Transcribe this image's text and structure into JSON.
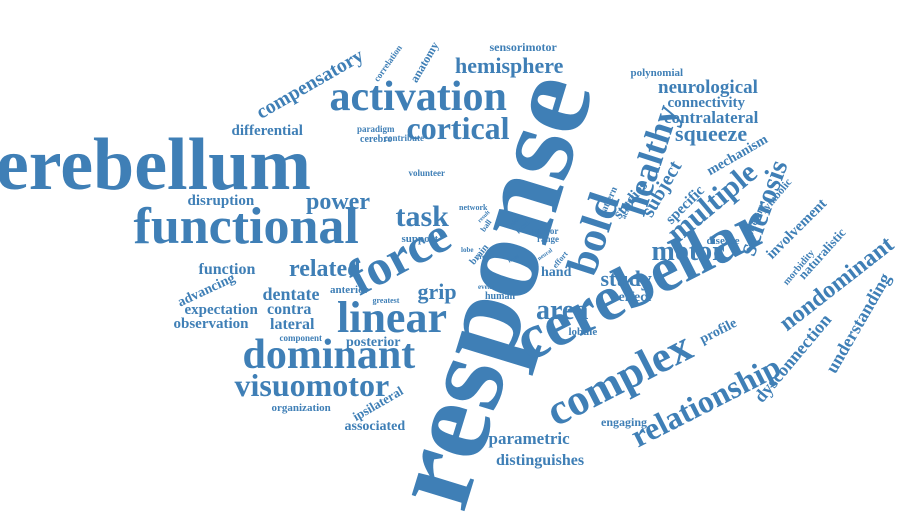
{
  "color": "#3f7fb6",
  "words": {
    "response": "response",
    "cerebellum": "cerebellum",
    "cerebellar": "cerebellar",
    "functional": "functional",
    "activation": "activation",
    "linear": "linear",
    "dominant": "dominant",
    "complex": "complex",
    "force": "force",
    "visuomotor": "visuomotor",
    "bold": "bold",
    "healthy": "healthy",
    "cortical": "cortical",
    "relationship": "relationship",
    "motor": "motor",
    "sclerosis": "sclerosis",
    "multiple": "multiple",
    "task": "task",
    "nondominant": "nondominant",
    "hemisphere": "hemisphere",
    "compensatory": "compensatory",
    "area": "area",
    "power": "power",
    "related": "related",
    "squeeze": "squeeze",
    "subject": "subject",
    "study": "study",
    "neurological": "neurological",
    "understanding": "understanding",
    "dysconnection": "dysconnection",
    "contralateral": "contralateral",
    "connectivity": "connectivity",
    "parametric": "parametric",
    "distinguishes": "distinguishes",
    "grip": "grip",
    "dentate": "dentate",
    "function": "function",
    "expectation": "expectation",
    "observation": "observation",
    "lateral": "lateral",
    "contra": "contra",
    "differential": "differential",
    "disruption": "disruption",
    "advancing": "advancing",
    "posterior": "posterior",
    "associated": "associated",
    "ipsilateral": "ipsilateral",
    "organization": "organization",
    "mechanism": "mechanism",
    "involvement": "involvement",
    "naturalistic": "naturalistic",
    "specific": "specific",
    "studies": "studies",
    "hand": "hand",
    "effect": "effect",
    "engaging": "engaging",
    "profile": "profile",
    "disease": "disease",
    "morbidity": "morbidity",
    "symbolic": "symbolic",
    "different": "different",
    "polynomial": "polynomial",
    "sensorimotor": "sensorimotor",
    "anatomy": "anatomy",
    "correlation": "correlation",
    "paradigm": "paradigm",
    "contribute": "contribute",
    "cerebro": "cerebro",
    "volunteer": "volunteer",
    "support": "support",
    "network": "network",
    "ball": "ball",
    "brain": "brain",
    "lobe": "lobe",
    "free": "free",
    "result": "result",
    "able": "able",
    "local": "local",
    "mirror": "mirror",
    "range": "range",
    "effort": "effort",
    "level": "level",
    "neural": "neural",
    "human": "human",
    "event": "event",
    "lobule": "lobule",
    "greatest": "greatest",
    "anterior": "anterior",
    "component": "component",
    "pattern": "pattern",
    "activity": "activity"
  }
}
